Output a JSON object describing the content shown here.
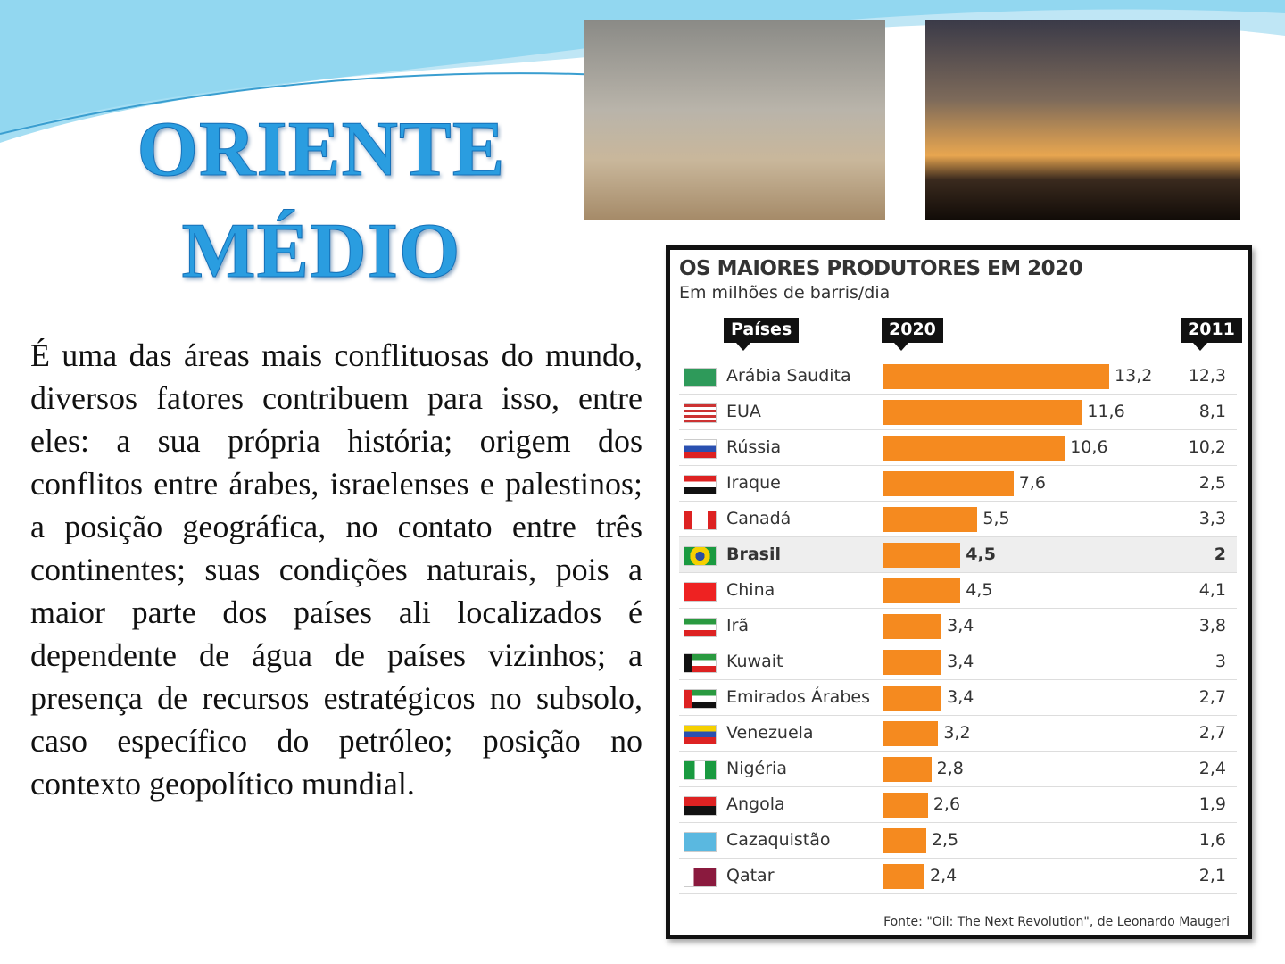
{
  "slide": {
    "title_line1": "ORIENTE",
    "title_line2": "MÉDIO",
    "paragraph": "É uma das áreas mais conflituosas do mundo, diversos fatores contribuem para isso, entre eles: a sua própria história; origem dos conflitos entre árabes, israelenses e palestinos; a posição geográfica, no contato entre três continentes; suas condições naturais, pois a maior parte dos países ali localizados é dependente de água de países vizinhos; a presença de recursos estratégicos no subsolo, caso específico do petróleo; posição no contexto geopolítico mundial."
  },
  "chart_data": {
    "type": "bar",
    "orientation": "horizontal",
    "title": "OS MAIORES PRODUTORES EM 2020",
    "subtitle": "Em milhões de barris/dia",
    "headers": [
      "Países",
      "2020",
      "2011"
    ],
    "categories": [
      "Arábia Saudita",
      "EUA",
      "Rússia",
      "Iraque",
      "Canadá",
      "Brasil",
      "China",
      "Irã",
      "Kuwait",
      "Emirados Árabes",
      "Venezuela",
      "Nigéria",
      "Angola",
      "Cazaquistão",
      "Qatar"
    ],
    "series": [
      {
        "name": "2020",
        "values": [
          13.2,
          11.6,
          10.6,
          7.6,
          5.5,
          4.5,
          4.5,
          3.4,
          3.4,
          3.4,
          3.2,
          2.8,
          2.6,
          2.5,
          2.4
        ],
        "labels": [
          "13,2",
          "11,6",
          "10,6",
          "7,6",
          "5,5",
          "4,5",
          "4,5",
          "3,4",
          "3,4",
          "3,4",
          "3,2",
          "2,8",
          "2,6",
          "2,5",
          "2,4"
        ],
        "color": "#f58a1f"
      },
      {
        "name": "2011",
        "values": [
          12.3,
          8.1,
          10.2,
          2.5,
          3.3,
          2,
          4.1,
          3.8,
          3,
          2.7,
          2.7,
          2.4,
          1.9,
          1.6,
          2.1
        ],
        "labels": [
          "12,3",
          "8,1",
          "10,2",
          "2,5",
          "3,3",
          "2",
          "4,1",
          "3,8",
          "3",
          "2,7",
          "2,7",
          "2,4",
          "1,9",
          "1,6",
          "2,1"
        ]
      }
    ],
    "highlight": "Brasil",
    "source": "Fonte: \"Oil: The Next Revolution\", de Leonardo Maugeri"
  },
  "flags": [
    "saudi-arabia",
    "usa",
    "russia",
    "iraq",
    "canada",
    "brazil",
    "china",
    "iran",
    "kuwait",
    "uae",
    "venezuela",
    "nigeria",
    "angola",
    "kazakhstan",
    "qatar"
  ]
}
